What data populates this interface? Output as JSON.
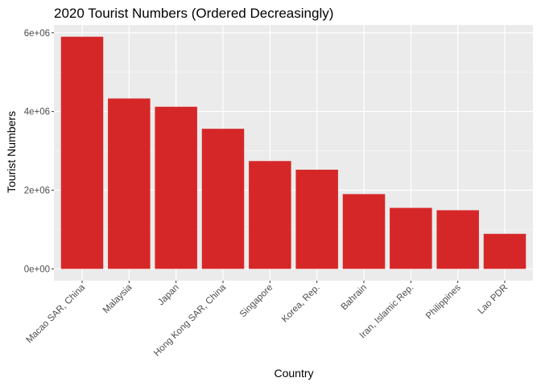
{
  "chart_data": {
    "type": "bar",
    "title": "2020 Tourist Numbers (Ordered Decreasingly)",
    "xlabel": "Country",
    "ylabel": "Tourist Numbers",
    "categories": [
      "Macao SAR, China",
      "Malaysia",
      "Japan",
      "Hong Kong SAR, China",
      "Singapore",
      "Korea, Rep.",
      "Bahrain",
      "Iran, Islamic Rep.",
      "Philippines",
      "Lao PDR"
    ],
    "values": [
      5900000,
      4330000,
      4120000,
      3560000,
      2740000,
      2520000,
      1900000,
      1550000,
      1490000,
      890000
    ],
    "ylim": [
      -300000,
      6200000
    ],
    "yticks": [
      0,
      2000000,
      4000000,
      6000000
    ],
    "ytick_labels": [
      "0e+00",
      "2e+06",
      "4e+06",
      "6e+06"
    ],
    "grid": true,
    "legend": "none",
    "colors": {
      "bar": "#d62728",
      "panel": "#ebebeb",
      "grid_major": "#ffffff",
      "grid_minor": "#f5f5f5"
    }
  }
}
